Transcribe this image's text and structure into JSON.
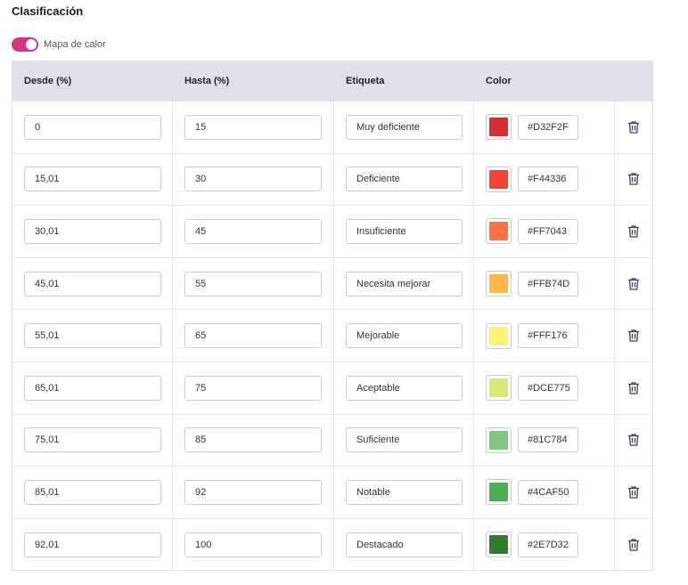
{
  "section_title": "Clasificación",
  "heatmap_toggle": {
    "label": "Mapa de calor",
    "on": true,
    "color": "#D63384"
  },
  "columns": {
    "from": "Desde (%)",
    "to": "Hasta (%)",
    "label": "Etiqueta",
    "color": "Color"
  },
  "rows": [
    {
      "from": "0",
      "to": "15",
      "label": "Muy deficiente",
      "hex": "#D32F2F"
    },
    {
      "from": "15,01",
      "to": "30",
      "label": "Deficiente",
      "hex": "#F44336"
    },
    {
      "from": "30,01",
      "to": "45",
      "label": "Insuficiente",
      "hex": "#FF7043"
    },
    {
      "from": "45,01",
      "to": "55",
      "label": "Necesita mejorar",
      "hex": "#FFB74D"
    },
    {
      "from": "55,01",
      "to": "65",
      "label": "Mejorable",
      "hex": "#FFF176"
    },
    {
      "from": "65,01",
      "to": "75",
      "label": "Aceptable",
      "hex": "#DCE775"
    },
    {
      "from": "75,01",
      "to": "85",
      "label": "Suficiente",
      "hex": "#81C784"
    },
    {
      "from": "85,01",
      "to": "92",
      "label": "Notable",
      "hex": "#4CAF50"
    },
    {
      "from": "92,01",
      "to": "100",
      "label": "Destacado",
      "hex": "#2E7D32"
    }
  ],
  "delete_icon": "trash-icon"
}
